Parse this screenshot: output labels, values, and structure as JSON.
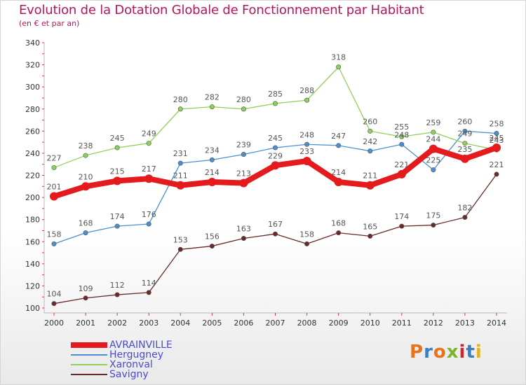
{
  "title": "Evolution de la Dotation Globale de Fonctionnement par Habitant",
  "subtitle": "(en € et par an)",
  "logo": {
    "text": "Proxiti"
  },
  "chart_data": {
    "type": "line",
    "title": "Evolution de la Dotation Globale de Fonctionnement par Habitant",
    "subtitle": "(en € et par an)",
    "x": [
      "2000",
      "2001",
      "2002",
      "2003",
      "2004",
      "2005",
      "2006",
      "2007",
      "2008",
      "2009",
      "2010",
      "2011",
      "2012",
      "2013",
      "2014"
    ],
    "ylim": [
      100,
      340
    ],
    "yticks": [
      100,
      120,
      140,
      160,
      180,
      200,
      220,
      240,
      260,
      280,
      300,
      320,
      340
    ],
    "grid": false,
    "legend_position": "bottom-left",
    "series": [
      {
        "name": "AVRAINVILLE",
        "color": "#e41a1c",
        "emphasis": true,
        "values": [
          201,
          210,
          215,
          217,
          211,
          214,
          213,
          229,
          233,
          214,
          211,
          221,
          244,
          235,
          245
        ]
      },
      {
        "name": "Hergugney",
        "color": "#4a8fd0",
        "values": [
          158,
          168,
          174,
          176,
          231,
          234,
          239,
          245,
          248,
          247,
          242,
          248,
          225,
          260,
          258
        ]
      },
      {
        "name": "Xaronval",
        "color": "#8ed15a",
        "values": [
          227,
          238,
          245,
          249,
          280,
          282,
          280,
          285,
          288,
          318,
          260,
          255,
          259,
          249,
          243
        ]
      },
      {
        "name": "Savigny",
        "color": "#6b2a2a",
        "values": [
          104,
          109,
          112,
          114,
          153,
          156,
          163,
          167,
          158,
          168,
          165,
          174,
          175,
          182,
          221
        ]
      }
    ]
  }
}
